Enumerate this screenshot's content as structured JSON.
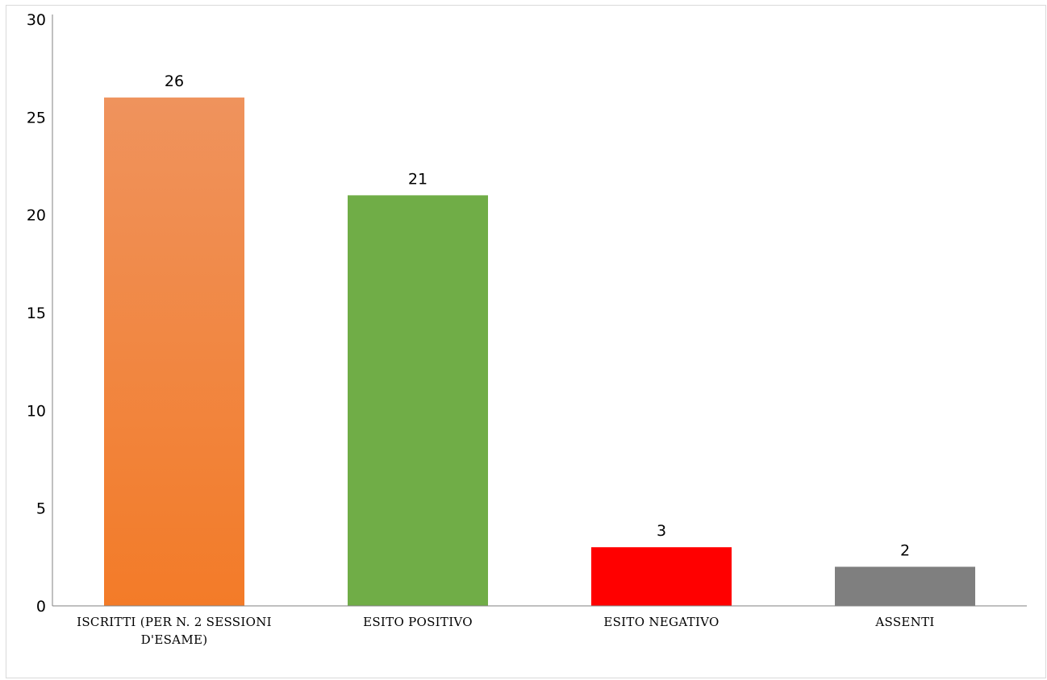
{
  "chart_data": {
    "type": "bar",
    "title": "",
    "xlabel": "",
    "ylabel": "",
    "categories": [
      [
        "ISCRITTI (PER N. 2 SESSIONI",
        "D'ESAME)"
      ],
      [
        "ESITO POSITIVO"
      ],
      [
        "ESITO NEGATIVO"
      ],
      [
        "ASSENTI"
      ]
    ],
    "values": [
      26,
      21,
      3,
      2
    ],
    "ylim": [
      0,
      30
    ],
    "yticks": [
      0,
      5,
      10,
      15,
      20,
      25,
      30
    ],
    "grid": false,
    "legend": "none",
    "colors": [
      "#f37b28",
      "#70ad47",
      "#ff0000",
      "#7f7f7f"
    ],
    "gradient_top": [
      "#ef935d",
      null,
      null,
      null
    ]
  }
}
